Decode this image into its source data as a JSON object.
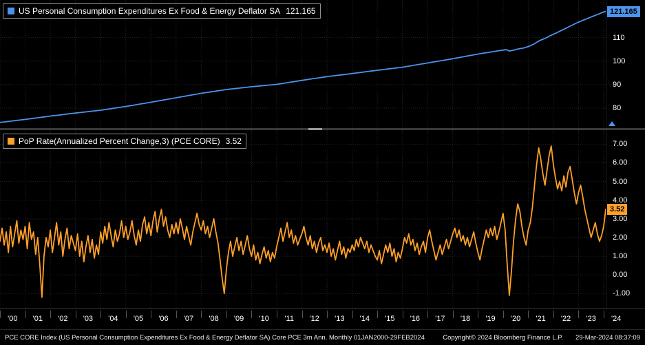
{
  "colors": {
    "background": "#000000",
    "grid": "#232323",
    "axis_text": "#ffffff",
    "blue": "#4a94ec",
    "orange": "#ffa028",
    "divider": "#3a3a3a"
  },
  "x_axis": {
    "year_labels": [
      "'00",
      "'01",
      "'02",
      "'03",
      "'04",
      "'05",
      "'06",
      "'07",
      "'08",
      "'09",
      "'10",
      "'11",
      "'12",
      "'13",
      "'14",
      "'15",
      "'16",
      "'17",
      "'18",
      "'19",
      "'20",
      "'21",
      "'22",
      "'23",
      "'24"
    ]
  },
  "footer": {
    "description": "PCE CORE Index (US Personal Consumption Expenditures Ex Food & Energy Deflator SA) Core PCE 3m Ann.  Monthly 01JAN2000-29FEB2024",
    "copyright": "Copyright© 2024 Bloomberg Finance L.P.",
    "timestamp": "29-Mar-2024 08:37:09"
  },
  "chart_data": [
    {
      "type": "line",
      "panel": "top",
      "title": "US Personal Consumption Expenditures Ex Food & Energy Deflator SA",
      "legend_value_label": "121.165",
      "last_value": 121.165,
      "line_color": "#4a94ec",
      "frequency": "Monthly",
      "x_range": "01JAN2000-29FEB2024",
      "ylim": [
        71.5,
        126
      ],
      "yticks": [
        110,
        100,
        90,
        80
      ],
      "ytick_labels": [
        "110",
        "100",
        "90",
        "80"
      ],
      "values": [
        73.9,
        74.01,
        74.12,
        74.23,
        74.33,
        74.44,
        74.55,
        74.66,
        74.77,
        74.88,
        74.98,
        75.09,
        75.2,
        75.32,
        75.43,
        75.55,
        75.67,
        75.78,
        75.9,
        76.02,
        76.13,
        76.25,
        76.37,
        76.48,
        76.6,
        76.71,
        76.82,
        76.93,
        77.03,
        77.14,
        77.25,
        77.36,
        77.47,
        77.58,
        77.68,
        77.79,
        77.9,
        78.0,
        78.1,
        78.2,
        78.3,
        78.4,
        78.5,
        78.6,
        78.7,
        78.8,
        78.9,
        79.0,
        79.1,
        79.23,
        79.37,
        79.5,
        79.63,
        79.77,
        79.9,
        80.03,
        80.17,
        80.3,
        80.43,
        80.57,
        80.7,
        80.85,
        81.0,
        81.15,
        81.3,
        81.45,
        81.6,
        81.75,
        81.9,
        82.05,
        82.2,
        82.35,
        82.5,
        82.66,
        82.82,
        82.97,
        83.13,
        83.29,
        83.45,
        83.61,
        83.77,
        83.92,
        84.08,
        84.24,
        84.4,
        84.56,
        84.72,
        84.87,
        85.03,
        85.19,
        85.35,
        85.51,
        85.67,
        85.82,
        85.98,
        86.14,
        86.3,
        86.43,
        86.57,
        86.7,
        86.83,
        86.97,
        87.1,
        87.23,
        87.37,
        87.5,
        87.63,
        87.77,
        87.9,
        88.0,
        88.1,
        88.2,
        88.3,
        88.4,
        88.5,
        88.6,
        88.7,
        88.8,
        88.9,
        89.0,
        89.1,
        89.18,
        89.27,
        89.35,
        89.43,
        89.52,
        89.6,
        89.68,
        89.77,
        89.85,
        89.93,
        90.02,
        90.1,
        90.24,
        90.38,
        90.53,
        90.67,
        90.81,
        90.95,
        91.09,
        91.23,
        91.38,
        91.52,
        91.66,
        91.8,
        91.93,
        92.07,
        92.2,
        92.33,
        92.47,
        92.6,
        92.73,
        92.87,
        93.0,
        93.13,
        93.27,
        93.4,
        93.51,
        93.62,
        93.73,
        93.83,
        93.94,
        94.05,
        94.16,
        94.27,
        94.38,
        94.48,
        94.59,
        94.7,
        94.82,
        94.93,
        95.05,
        95.17,
        95.28,
        95.4,
        95.52,
        95.63,
        95.75,
        95.87,
        95.98,
        96.1,
        96.21,
        96.32,
        96.43,
        96.53,
        96.64,
        96.75,
        96.86,
        96.97,
        97.08,
        97.18,
        97.29,
        97.4,
        97.55,
        97.7,
        97.85,
        98.0,
        98.15,
        98.3,
        98.45,
        98.6,
        98.75,
        98.9,
        99.05,
        99.2,
        99.35,
        99.5,
        99.65,
        99.8,
        99.95,
        100.1,
        100.25,
        100.4,
        100.55,
        100.7,
        100.85,
        101.0,
        101.17,
        101.33,
        101.5,
        101.67,
        101.83,
        102.0,
        102.17,
        102.33,
        102.5,
        102.67,
        102.83,
        103.0,
        103.14,
        103.28,
        103.43,
        103.57,
        103.71,
        103.85,
        103.99,
        104.13,
        104.28,
        104.42,
        104.56,
        104.7,
        104.85,
        104.75,
        104.3,
        104.45,
        104.65,
        104.9,
        105.15,
        105.3,
        105.45,
        105.6,
        105.9,
        106.2,
        106.55,
        106.95,
        107.4,
        107.95,
        108.5,
        108.95,
        109.3,
        109.65,
        110.1,
        110.6,
        111.0,
        111.4,
        111.83,
        112.27,
        112.7,
        113.13,
        113.57,
        114.0,
        114.43,
        114.87,
        115.3,
        115.73,
        116.17,
        116.6,
        116.96,
        117.32,
        117.68,
        118.03,
        118.39,
        118.75,
        119.11,
        119.47,
        119.82,
        120.18,
        120.54,
        120.9,
        121.165
      ]
    },
    {
      "type": "line",
      "panel": "bottom",
      "title": "PoP Rate(Annualized Percent Change,3) (PCE CORE)",
      "legend_value_label": "3.52",
      "last_value": 3.52,
      "line_color": "#ffa028",
      "frequency": "Monthly",
      "x_range": "01JAN2000-29FEB2024",
      "ylim": [
        -1.8,
        7.75
      ],
      "yticks": [
        7,
        6,
        5,
        4,
        3,
        2,
        1,
        0,
        -1
      ],
      "ytick_labels": [
        "7.00",
        "6.00",
        "5.00",
        "4.00",
        "3.00",
        "2.00",
        "1.00",
        "0.00",
        "-1.00"
      ],
      "values": [
        1.8,
        2.5,
        1.6,
        2.3,
        1.2,
        2.6,
        1.5,
        2.2,
        2.9,
        1.7,
        2.4,
        1.9,
        2.6,
        1.4,
        2.8,
        1.9,
        2.3,
        1.1,
        2.0,
        0.5,
        -1.2,
        1.0,
        2.0,
        1.5,
        2.4,
        1.2,
        2.0,
        2.8,
        1.6,
        2.3,
        1.0,
        1.9,
        2.5,
        1.4,
        2.1,
        1.7,
        1.3,
        2.2,
        1.0,
        1.8,
        0.7,
        1.5,
        2.1,
        1.2,
        1.9,
        0.9,
        1.6,
        1.1,
        2.3,
        1.7,
        2.6,
        1.9,
        2.8,
        2.1,
        1.5,
        2.4,
        1.8,
        2.2,
        2.9,
        2.0,
        2.6,
        1.9,
        2.3,
        2.9,
        2.1,
        1.6,
        2.4,
        1.8,
        2.7,
        3.1,
        2.2,
        2.8,
        2.1,
        2.9,
        3.4,
        2.3,
        3.0,
        3.5,
        2.6,
        3.1,
        2.4,
        2.0,
        2.7,
        2.2,
        2.8,
        2.2,
        3.0,
        2.5,
        1.9,
        2.6,
        2.1,
        1.6,
        2.3,
        2.8,
        3.3,
        2.7,
        2.4,
        2.9,
        2.2,
        2.6,
        2.0,
        2.5,
        3.0,
        2.3,
        1.7,
        0.8,
        -0.2,
        -1.0,
        0.3,
        1.2,
        1.8,
        1.0,
        1.5,
        2.0,
        1.3,
        1.8,
        1.1,
        1.6,
        2.1,
        1.4,
        1.0,
        1.6,
        0.8,
        1.2,
        0.6,
        1.1,
        1.5,
        0.9,
        1.3,
        0.7,
        1.2,
        0.9,
        1.5,
        2.0,
        2.5,
        1.8,
        2.3,
        2.8,
        2.0,
        2.4,
        1.7,
        2.1,
        1.6,
        1.9,
        2.2,
        2.6,
        2.0,
        1.6,
        2.1,
        1.4,
        1.8,
        1.2,
        1.7,
        2.0,
        1.3,
        1.6,
        1.2,
        1.7,
        1.0,
        1.4,
        0.8,
        1.3,
        1.8,
        1.1,
        1.5,
        0.9,
        1.4,
        1.2,
        1.6,
        1.3,
        1.9,
        1.5,
        2.0,
        1.7,
        1.4,
        1.8,
        1.2,
        1.6,
        1.3,
        1.0,
        0.8,
        1.3,
        0.6,
        1.1,
        1.6,
        1.2,
        1.7,
        1.0,
        1.4,
        0.7,
        1.2,
        0.9,
        1.4,
        2.0,
        1.7,
        2.2,
        1.6,
        1.9,
        1.3,
        1.7,
        1.1,
        1.5,
        1.8,
        1.2,
        2.0,
        2.4,
        1.8,
        1.3,
        0.8,
        1.2,
        1.6,
        1.1,
        1.5,
        1.9,
        1.4,
        1.8,
        2.2,
        2.5,
        2.0,
        2.4,
        1.8,
        2.1,
        1.6,
        2.0,
        1.5,
        1.9,
        2.3,
        1.7,
        1.2,
        0.8,
        1.4,
        1.9,
        2.4,
        2.0,
        2.5,
        2.1,
        2.6,
        1.9,
        2.3,
        2.8,
        3.3,
        2.4,
        0.5,
        -1.1,
        0.2,
        1.8,
        3.0,
        3.8,
        3.4,
        2.6,
        2.0,
        1.6,
        2.4,
        2.8,
        3.6,
        4.8,
        5.9,
        6.8,
        6.2,
        5.4,
        4.8,
        5.6,
        6.4,
        6.9,
        5.9,
        5.2,
        4.6,
        5.0,
        4.5,
        5.3,
        4.7,
        5.5,
        5.8,
        5.1,
        4.4,
        3.8,
        4.4,
        4.8,
        4.2,
        3.5,
        3.0,
        2.5,
        2.0,
        2.4,
        2.8,
        2.2,
        1.8,
        2.1,
        2.6,
        3.52
      ]
    }
  ]
}
